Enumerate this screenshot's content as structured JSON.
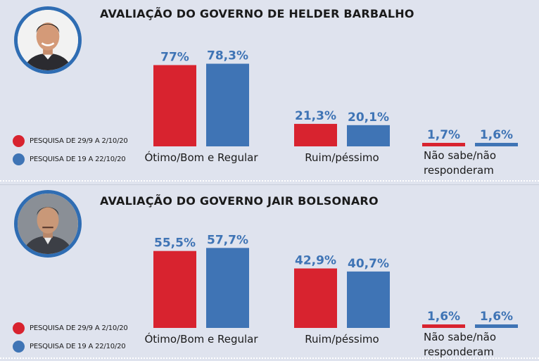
{
  "colors": {
    "series_1": "#d8232f",
    "series_2": "#3f74b5",
    "value_label": "#3f74b5"
  },
  "panels": [
    {
      "title": "AVALIAÇÃO DO GOVERNO DE HELDER BARBALHO",
      "photo_icon": "helder-barbalho-portrait-icon"
    },
    {
      "title": "AVALIAÇÃO DO GOVERNO JAIR BOLSONARO",
      "photo_icon": "jair-bolsonaro-portrait-icon"
    }
  ],
  "legend": [
    {
      "label": "PESQUISA DE 29/9 A 2/10/20"
    },
    {
      "label": "PESQUISA DE 19 A 22/10/20"
    }
  ],
  "chart_data": [
    {
      "type": "bar",
      "title": "AVALIAÇÃO DO GOVERNO DE HELDER BARBALHO",
      "categories": [
        "Ótimo/Bom e Regular",
        "Ruim/péssimo",
        "Não sabe/não responderam"
      ],
      "series": [
        {
          "name": "PESQUISA DE 29/9 A 2/10/20",
          "values": [
            77,
            21.3,
            1.7
          ],
          "labels": [
            "77%",
            "21,3%",
            "1,7%"
          ]
        },
        {
          "name": "PESQUISA DE 19 A 22/10/20",
          "values": [
            78.3,
            20.1,
            1.6
          ],
          "labels": [
            "78,3%",
            "20,1%",
            "1,6%"
          ]
        }
      ],
      "grid": false,
      "legend_position": "left"
    },
    {
      "type": "bar",
      "title": "AVALIAÇÃO DO GOVERNO JAIR BOLSONARO",
      "categories": [
        "Ótimo/Bom e Regular",
        "Ruim/péssimo",
        "Não sabe/não responderam"
      ],
      "series": [
        {
          "name": "PESQUISA DE 29/9 A 2/10/20",
          "values": [
            55.5,
            42.9,
            1.6
          ],
          "labels": [
            "55,5%",
            "42,9%",
            "1,6%"
          ]
        },
        {
          "name": "PESQUISA DE 19 A 22/10/20",
          "values": [
            57.7,
            40.7,
            1.6
          ],
          "labels": [
            "57,7%",
            "40,7%",
            "1,6%"
          ]
        }
      ],
      "grid": false,
      "legend_position": "left"
    }
  ]
}
